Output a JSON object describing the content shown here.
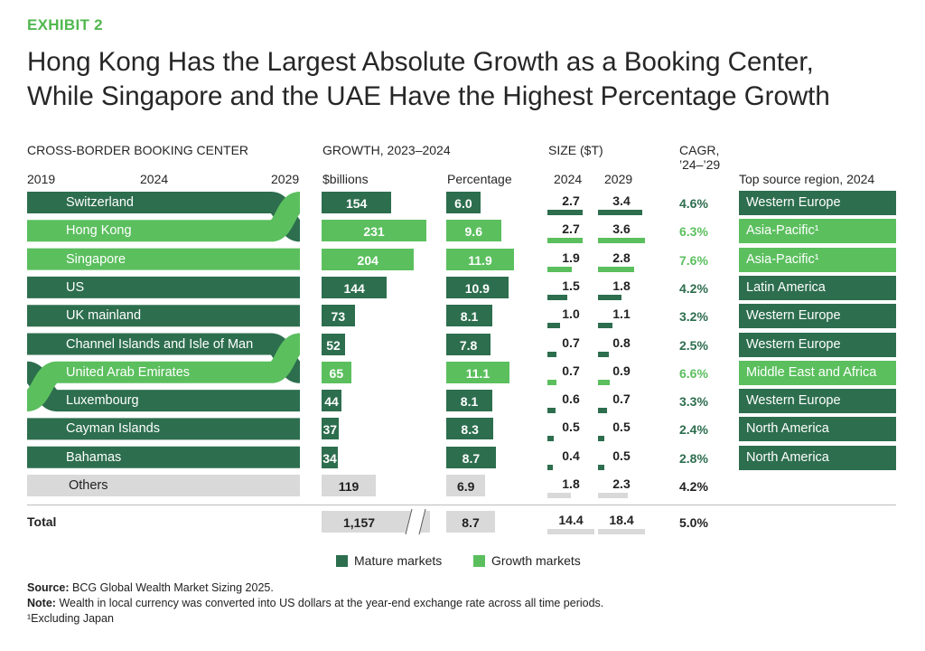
{
  "exhibit": "EXHIBIT 2",
  "title_line1": "Hong Kong Has the Largest Absolute Growth as a Booking Center,",
  "title_line2": "While Singapore and the UAE Have the Highest Percentage Growth",
  "headers": {
    "center": "CROSS-BORDER BOOKING CENTER",
    "growth": "GROWTH, 2023–2024",
    "size": "SIZE ($T)",
    "cagr_line1": "CAGR,",
    "cagr_line2": "’24–’29",
    "year_2019": "2019",
    "year_2024": "2024",
    "year_2029": "2029",
    "billions": "$billions",
    "percentage": "Percentage",
    "size_2024": "2024",
    "size_2029": "2029",
    "region": "Top source region, 2024"
  },
  "colors": {
    "mature": "#2d6e4e",
    "growth": "#5bbf5e",
    "other": "#d9d9d9"
  },
  "chart_data": {
    "type": "table",
    "columns": [
      "Cross-border booking center",
      "Growth 2023–2024 ($billions)",
      "Growth 2023–2024 (Percentage)",
      "Size 2024 ($T)",
      "Size 2029 ($T)",
      "CAGR ’24–’29",
      "Top source region, 2024"
    ],
    "rows": [
      {
        "center": "Switzerland",
        "group": "mature",
        "growth_b": 154,
        "growth_b_label": "154",
        "growth_pct": 6.0,
        "growth_pct_label": "6.0",
        "size_2024": 2.7,
        "size_2024_label": "2.7",
        "size_2029": 3.4,
        "size_2029_label": "3.4",
        "cagr": "4.6%",
        "region": "Western Europe",
        "rank_2019": 1,
        "rank_2024": 1,
        "rank_2029": 2
      },
      {
        "center": "Hong Kong",
        "group": "growth",
        "growth_b": 231,
        "growth_b_label": "231",
        "growth_pct": 9.6,
        "growth_pct_label": "9.6",
        "size_2024": 2.7,
        "size_2024_label": "2.7",
        "size_2029": 3.6,
        "size_2029_label": "3.6",
        "cagr": "6.3%",
        "region": "Asia-Pacific¹",
        "rank_2019": 2,
        "rank_2024": 2,
        "rank_2029": 1
      },
      {
        "center": "Singapore",
        "group": "growth",
        "growth_b": 204,
        "growth_b_label": "204",
        "growth_pct": 11.9,
        "growth_pct_label": "11.9",
        "size_2024": 1.9,
        "size_2024_label": "1.9",
        "size_2029": 2.8,
        "size_2029_label": "2.8",
        "cagr": "7.6%",
        "region": "Asia-Pacific¹",
        "rank_2019": 3,
        "rank_2024": 3,
        "rank_2029": 3
      },
      {
        "center": "US",
        "group": "mature",
        "growth_b": 144,
        "growth_b_label": "144",
        "growth_pct": 10.9,
        "growth_pct_label": "10.9",
        "size_2024": 1.5,
        "size_2024_label": "1.5",
        "size_2029": 1.8,
        "size_2029_label": "1.8",
        "cagr": "4.2%",
        "region": "Latin America",
        "rank_2019": 4,
        "rank_2024": 4,
        "rank_2029": 4
      },
      {
        "center": "UK mainland",
        "group": "mature",
        "growth_b": 73,
        "growth_b_label": "73",
        "growth_pct": 8.1,
        "growth_pct_label": "8.1",
        "size_2024": 1.0,
        "size_2024_label": "1.0",
        "size_2029": 1.1,
        "size_2029_label": "1.1",
        "cagr": "3.2%",
        "region": "Western Europe",
        "rank_2019": 5,
        "rank_2024": 5,
        "rank_2029": 5
      },
      {
        "center": "Channel Islands and Isle of Man",
        "group": "mature",
        "growth_b": 52,
        "growth_b_label": "52",
        "growth_pct": 7.8,
        "growth_pct_label": "7.8",
        "size_2024": 0.7,
        "size_2024_label": "0.7",
        "size_2029": 0.8,
        "size_2029_label": "0.8",
        "cagr": "2.5%",
        "region": "Western Europe",
        "rank_2019": 6,
        "rank_2024": 6,
        "rank_2029": 7
      },
      {
        "center": "United Arab Emirates",
        "group": "growth",
        "growth_b": 65,
        "growth_b_label": "65",
        "growth_pct": 11.1,
        "growth_pct_label": "11.1",
        "size_2024": 0.7,
        "size_2024_label": "0.7",
        "size_2029": 0.9,
        "size_2029_label": "0.9",
        "cagr": "6.6%",
        "region": "Middle East and Africa",
        "rank_2019": 8,
        "rank_2024": 7,
        "rank_2029": 6
      },
      {
        "center": "Luxembourg",
        "group": "mature",
        "growth_b": 44,
        "growth_b_label": "44",
        "growth_pct": 8.1,
        "growth_pct_label": "8.1",
        "size_2024": 0.6,
        "size_2024_label": "0.6",
        "size_2029": 0.7,
        "size_2029_label": "0.7",
        "cagr": "3.3%",
        "region": "Western Europe",
        "rank_2019": 7,
        "rank_2024": 8,
        "rank_2029": 8
      },
      {
        "center": "Cayman Islands",
        "group": "mature",
        "growth_b": 37,
        "growth_b_label": "37",
        "growth_pct": 8.3,
        "growth_pct_label": "8.3",
        "size_2024": 0.5,
        "size_2024_label": "0.5",
        "size_2029": 0.5,
        "size_2029_label": "0.5",
        "cagr": "2.4%",
        "region": "North America",
        "rank_2019": 9,
        "rank_2024": 9,
        "rank_2029": 9
      },
      {
        "center": "Bahamas",
        "group": "mature",
        "growth_b": 34,
        "growth_b_label": "34",
        "growth_pct": 8.7,
        "growth_pct_label": "8.7",
        "size_2024": 0.4,
        "size_2024_label": "0.4",
        "size_2029": 0.5,
        "size_2029_label": "0.5",
        "cagr": "2.8%",
        "region": "North America",
        "rank_2019": 10,
        "rank_2024": 10,
        "rank_2029": 10
      },
      {
        "center": "Others",
        "group": "other",
        "growth_b": 119,
        "growth_b_label": "119",
        "growth_pct": 6.9,
        "growth_pct_label": "6.9",
        "size_2024": 1.8,
        "size_2024_label": "1.8",
        "size_2029": 2.3,
        "size_2029_label": "2.3",
        "cagr": "4.2%",
        "region": ""
      }
    ],
    "total": {
      "center": "Total",
      "growth_b": 1157,
      "growth_b_label": "1,157",
      "growth_pct": 8.7,
      "growth_pct_label": "8.7",
      "size_2024": 14.4,
      "size_2024_label": "14.4",
      "size_2029": 18.4,
      "size_2029_label": "18.4",
      "cagr": "5.0%"
    },
    "legend": [
      {
        "label": "Mature markets",
        "group": "mature"
      },
      {
        "label": "Growth markets",
        "group": "growth"
      }
    ]
  },
  "footer": {
    "source_label": "Source:",
    "source_text": "BCG Global Wealth Market Sizing 2025.",
    "note_label": "Note:",
    "note_text": "Wealth in local currency was converted into US dollars at the year-end exchange rate across all time periods.",
    "footnote": "¹Excluding Japan"
  }
}
